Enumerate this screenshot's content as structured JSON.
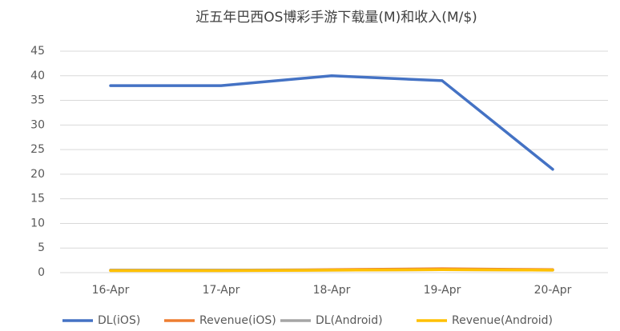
{
  "chart_data": {
    "type": "line",
    "title": "近五年巴西OS博彩手游下载量(M)和收入(M/$)",
    "categories": [
      "16-Apr",
      "17-Apr",
      "18-Apr",
      "19-Apr",
      "20-Apr"
    ],
    "series": [
      {
        "name": "DL(iOS)",
        "color": "#4472c4",
        "values": [
          38,
          38,
          40,
          39,
          21
        ]
      },
      {
        "name": "Revenue(iOS)",
        "color": "#ed7d31",
        "values": [
          0.5,
          0.5,
          0.6,
          0.8,
          0.6
        ]
      },
      {
        "name": "DL(Android)",
        "color": "#a5a5a5",
        "values": [
          0.5,
          0.5,
          0.5,
          0.6,
          0.5
        ]
      },
      {
        "name": "Revenue(Android)",
        "color": "#ffc000",
        "values": [
          0.4,
          0.4,
          0.5,
          0.6,
          0.5
        ]
      }
    ],
    "ylim": [
      0,
      45
    ],
    "yticks": [
      0,
      5,
      10,
      15,
      20,
      25,
      30,
      35,
      40,
      45
    ],
    "grid": true
  }
}
